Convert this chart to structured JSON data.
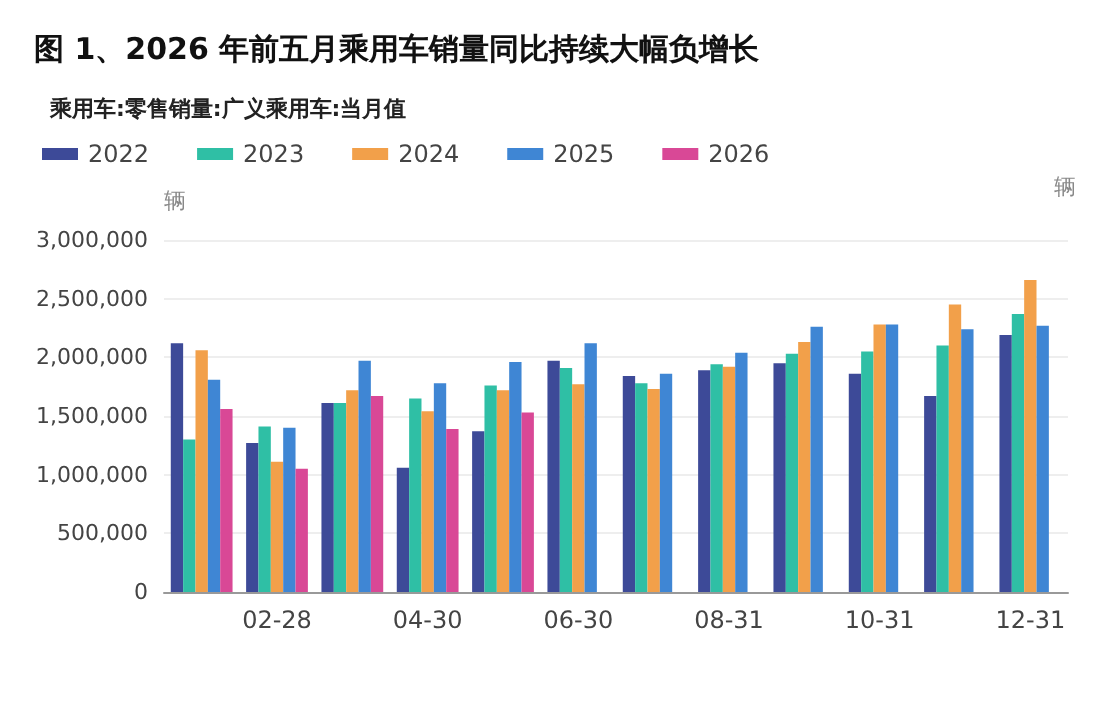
{
  "chart_data": {
    "type": "bar",
    "title": "图 1、2026 年前五月乘用车销量同比持续大幅负增长",
    "subtitle": "乘用车:零售销量:广义乘用车:当月值",
    "ylabel": "辆",
    "annotations": [
      "辆"
    ],
    "categories": [
      null,
      "02-28",
      null,
      "04-30",
      null,
      "06-30",
      null,
      "08-31",
      null,
      "10-31",
      null,
      "12-31"
    ],
    "series": [
      {
        "name": "2022",
        "color": "#3d4a98",
        "values": [
          2120000,
          1270000,
          1610000,
          1060000,
          1370000,
          1970000,
          1840000,
          1890000,
          1950000,
          1860000,
          1670000,
          2190000
        ]
      },
      {
        "name": "2023",
        "color": "#2fbfa5",
        "values": [
          1300000,
          1410000,
          1610000,
          1650000,
          1760000,
          1910000,
          1780000,
          1940000,
          2030000,
          2050000,
          2100000,
          2370000
        ]
      },
      {
        "name": "2024",
        "color": "#f2a04a",
        "values": [
          2060000,
          1110000,
          1720000,
          1540000,
          1720000,
          1770000,
          1730000,
          1920000,
          2130000,
          2280000,
          2450000,
          2660000
        ]
      },
      {
        "name": "2025",
        "color": "#3f86d4",
        "values": [
          1810000,
          1400000,
          1970000,
          1780000,
          1960000,
          2120000,
          1860000,
          2040000,
          2260000,
          2280000,
          2240000,
          2270000
        ]
      },
      {
        "name": "2026",
        "color": "#d94896",
        "values": [
          1560000,
          1050000,
          1670000,
          1390000,
          1530000,
          null,
          null,
          null,
          null,
          null,
          null,
          null
        ]
      }
    ],
    "ylim": [
      0,
      3000000
    ],
    "yticks": [
      0,
      {
        "value": 500000,
        "label": "500,000"
      },
      {
        "value": 1000000,
        "label": "1,000,000"
      },
      {
        "value": 1500000,
        "label": "1,500,000"
      },
      {
        "value": 2000000,
        "label": "2,000,000"
      },
      {
        "value": 2500000,
        "label": "2,500,000"
      },
      {
        "value": 3000000,
        "label": "3,000,000"
      }
    ],
    "grid": "y",
    "legend": "top left"
  }
}
